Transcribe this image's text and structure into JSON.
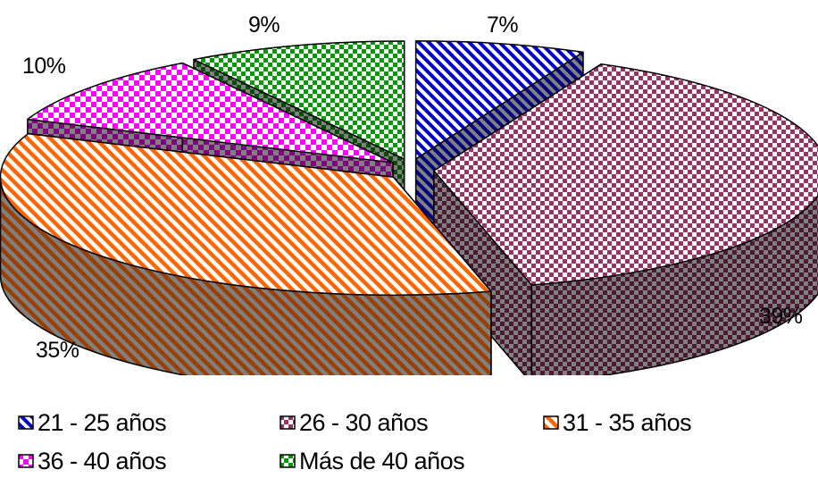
{
  "chart_data": {
    "type": "pie",
    "style": "3d-exploded",
    "title": "",
    "categories": [
      "21 - 25 años",
      "26 - 30 años",
      "31 - 35 años",
      "36 - 40 años",
      "Más de 40 años"
    ],
    "values": [
      7,
      39,
      35,
      10,
      9
    ],
    "value_labels": [
      "7%",
      "39%",
      "35%",
      "10%",
      "9%"
    ],
    "legend_position": "bottom",
    "colors": {
      "21 - 25 años": "#0000cc",
      "26 - 30 años": "#993366",
      "31 - 35 años": "#ff6600",
      "36 - 40 años": "#ff00ff",
      "Más de 40 años": "#009900"
    },
    "patterns": {
      "21 - 25 años": "diagonal-stripes",
      "26 - 30 años": "checker",
      "31 - 35 años": "diagonal-stripes",
      "36 - 40 años": "diamond-checker",
      "Más de 40 años": "checker"
    }
  }
}
